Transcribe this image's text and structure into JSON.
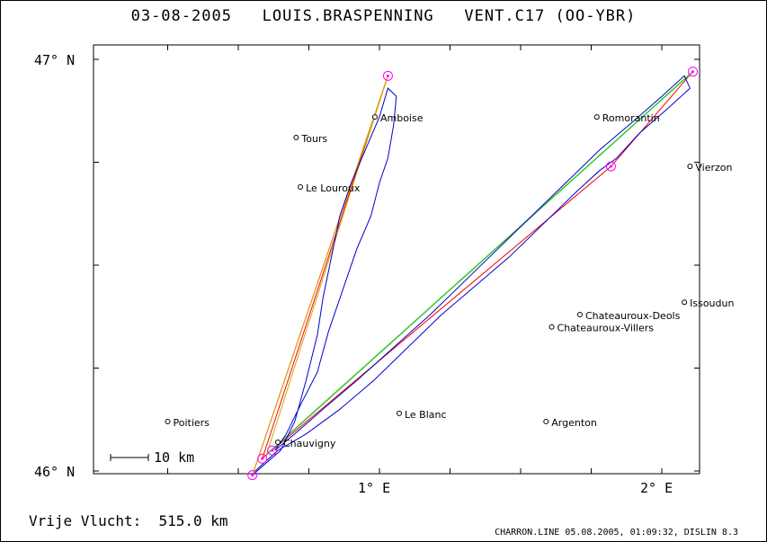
{
  "header": {
    "date": "03-08-2005",
    "pilot": "LOUIS.BRASPENNING",
    "glider": "VENT.C17 (OO-YBR)"
  },
  "axes": {
    "lat_top": "47° N",
    "lat_bottom": "46° N",
    "lon_1": "1° E",
    "lon_2": "2° E"
  },
  "scale_bar": {
    "label": "10 km",
    "length_km": 10
  },
  "footer": {
    "distance_label": "Vrije Vlucht:",
    "distance_value": "515.0 km",
    "credit": "CHARRON.LINE 05.08.2005, 01:09:32, DISLIN 8.3"
  },
  "map_data": {
    "lon_range": [
      -0.0,
      2.15
    ],
    "lat_range": [
      45.97,
      47.02
    ],
    "colors": {
      "track": "#0000cc",
      "task_leg": "#ff0000",
      "optimized_leg": "#ccaa00",
      "wind_leg": "#33cc33",
      "turnpoint": "#ff00ff",
      "town": "#000000"
    },
    "towns": [
      {
        "name": "Amboise",
        "lon": 0.984,
        "lat": 46.86
      },
      {
        "name": "Tours",
        "lon": 0.705,
        "lat": 46.81
      },
      {
        "name": "Le Louroux",
        "lon": 0.72,
        "lat": 46.69
      },
      {
        "name": "Romorantin",
        "lon": 1.77,
        "lat": 46.86
      },
      {
        "name": "Vierzon",
        "lon": 2.1,
        "lat": 46.74
      },
      {
        "name": "Issoudun",
        "lon": 2.08,
        "lat": 46.41
      },
      {
        "name": "Chateauroux-Deols",
        "lon": 1.71,
        "lat": 46.38
      },
      {
        "name": "Chateauroux-Villers",
        "lon": 1.61,
        "lat": 46.35
      },
      {
        "name": "Le Blanc",
        "lon": 1.07,
        "lat": 46.14
      },
      {
        "name": "Argenton",
        "lon": 1.59,
        "lat": 46.12
      },
      {
        "name": "Poitiers",
        "lon": 0.25,
        "lat": 46.12
      },
      {
        "name": "Chauvigny",
        "lon": 0.64,
        "lat": 46.07
      }
    ],
    "turnpoints": [
      {
        "lon": 0.55,
        "lat": 45.99
      },
      {
        "lon": 1.03,
        "lat": 46.96
      },
      {
        "lon": 2.11,
        "lat": 46.97
      },
      {
        "lon": 1.82,
        "lat": 46.74
      },
      {
        "lon": 0.585,
        "lat": 46.03
      },
      {
        "lon": 0.62,
        "lat": 46.05
      }
    ],
    "task_leg": [
      [
        0.55,
        45.99
      ],
      [
        1.03,
        46.96
      ],
      [
        0.585,
        46.03
      ],
      [
        2.11,
        46.97
      ],
      [
        1.82,
        46.74
      ],
      [
        0.62,
        46.05
      ]
    ],
    "optimized_leg": [
      [
        0.55,
        45.99
      ],
      [
        1.03,
        46.96
      ],
      [
        0.6,
        46.04
      ]
    ],
    "wind_leg": [
      [
        0.6,
        46.04
      ],
      [
        2.11,
        46.97
      ]
    ],
    "track": [
      [
        0.55,
        45.99
      ],
      [
        0.6,
        46.02
      ],
      [
        0.65,
        46.05
      ],
      [
        0.7,
        46.12
      ],
      [
        0.74,
        46.22
      ],
      [
        0.78,
        46.33
      ],
      [
        0.8,
        46.42
      ],
      [
        0.83,
        46.52
      ],
      [
        0.86,
        46.62
      ],
      [
        0.9,
        46.7
      ],
      [
        0.95,
        46.78
      ],
      [
        1.0,
        46.86
      ],
      [
        1.03,
        46.93
      ],
      [
        1.06,
        46.91
      ],
      [
        1.05,
        46.84
      ],
      [
        1.03,
        46.76
      ],
      [
        1.0,
        46.7
      ],
      [
        0.97,
        46.62
      ],
      [
        0.92,
        46.54
      ],
      [
        0.87,
        46.44
      ],
      [
        0.82,
        46.34
      ],
      [
        0.78,
        46.24
      ],
      [
        0.72,
        46.16
      ],
      [
        0.67,
        46.09
      ],
      [
        0.63,
        46.05
      ],
      [
        0.7,
        46.09
      ],
      [
        0.8,
        46.15
      ],
      [
        0.92,
        46.22
      ],
      [
        1.05,
        46.3
      ],
      [
        1.18,
        46.38
      ],
      [
        1.3,
        46.46
      ],
      [
        1.42,
        46.54
      ],
      [
        1.54,
        46.62
      ],
      [
        1.66,
        46.7
      ],
      [
        1.78,
        46.78
      ],
      [
        1.9,
        46.85
      ],
      [
        2.0,
        46.91
      ],
      [
        2.08,
        46.96
      ],
      [
        2.1,
        46.93
      ],
      [
        2.02,
        46.88
      ],
      [
        1.92,
        46.82
      ],
      [
        1.84,
        46.76
      ],
      [
        1.78,
        46.73
      ],
      [
        1.7,
        46.68
      ],
      [
        1.58,
        46.6
      ],
      [
        1.46,
        46.52
      ],
      [
        1.34,
        46.45
      ],
      [
        1.22,
        46.38
      ],
      [
        1.1,
        46.3
      ],
      [
        0.98,
        46.22
      ],
      [
        0.86,
        46.15
      ],
      [
        0.74,
        46.09
      ],
      [
        0.64,
        46.05
      ],
      [
        0.56,
        46.0
      ]
    ]
  }
}
